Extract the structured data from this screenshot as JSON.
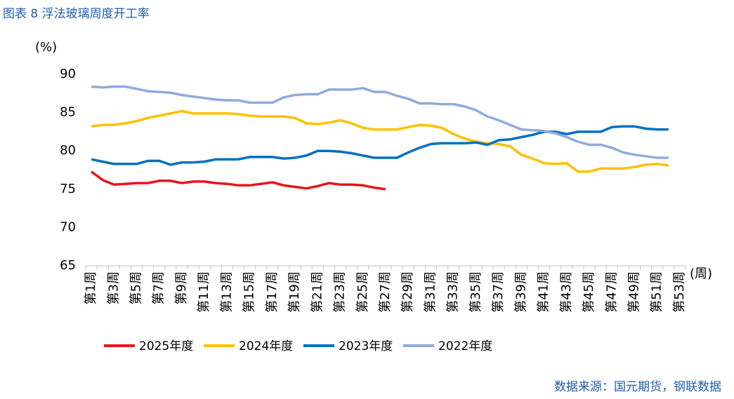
{
  "chart_data": {
    "type": "line",
    "title": "图表 8 浮法玻璃周度开工率",
    "y_label": "(%)",
    "x_label": "(周)",
    "source": "数据来源：国元期货，钢联数据",
    "categories": [
      "第1周",
      null,
      "第3周",
      null,
      "第5周",
      null,
      "第7周",
      null,
      "第9周",
      null,
      "第11周",
      null,
      "第13周",
      null,
      "第15周",
      null,
      "第17周",
      null,
      "第19周",
      null,
      "第21周",
      null,
      "第23周",
      null,
      "第25周",
      null,
      "第27周",
      null,
      "第29周",
      null,
      "第31周",
      null,
      "第33周",
      null,
      "第35周",
      null,
      "第37周",
      null,
      "第39周",
      null,
      "第41周",
      null,
      "第43周",
      null,
      "第45周",
      null,
      "第47周",
      null,
      "第49周",
      null,
      "第51周",
      null,
      "第53周"
    ],
    "series": [
      {
        "name": "2025年度",
        "color": "#e8141b",
        "values": [
          77.3,
          76.2,
          75.6,
          75.7,
          75.8,
          75.8,
          76.1,
          76.1,
          75.8,
          76.0,
          76.0,
          75.8,
          75.7,
          75.5,
          75.5,
          75.7,
          75.9,
          75.5,
          75.3,
          75.1,
          75.4,
          75.8,
          75.6,
          75.6,
          75.5,
          75.2,
          75.0,
          null,
          null,
          null,
          null,
          null,
          null,
          null,
          null,
          null,
          null,
          null,
          null,
          null,
          null,
          null,
          null,
          null,
          null,
          null,
          null,
          null,
          null,
          null,
          null,
          null,
          null
        ]
      },
      {
        "name": "2024年度",
        "color": "#ffc000",
        "values": [
          83.2,
          83.4,
          83.4,
          83.6,
          83.9,
          84.3,
          84.6,
          84.9,
          85.2,
          84.9,
          84.9,
          84.9,
          84.9,
          84.8,
          84.6,
          84.5,
          84.5,
          84.5,
          84.3,
          83.6,
          83.5,
          83.7,
          84.0,
          83.6,
          83.0,
          82.8,
          82.8,
          82.8,
          83.1,
          83.4,
          83.3,
          83.0,
          82.2,
          81.6,
          81.2,
          81.0,
          80.9,
          80.6,
          79.5,
          79.0,
          78.4,
          78.3,
          78.4,
          77.3,
          77.3,
          77.7,
          77.7,
          77.7,
          77.9,
          78.2,
          78.3,
          78.1,
          null
        ]
      },
      {
        "name": "2023年度",
        "color": "#0070c0",
        "values": [
          78.9,
          78.6,
          78.3,
          78.3,
          78.3,
          78.7,
          78.7,
          78.2,
          78.5,
          78.5,
          78.6,
          78.9,
          78.9,
          78.9,
          79.2,
          79.2,
          79.2,
          79.0,
          79.1,
          79.4,
          80.0,
          80.0,
          79.9,
          79.7,
          79.4,
          79.1,
          79.1,
          79.1,
          79.8,
          80.4,
          80.9,
          81.0,
          81.0,
          81.0,
          81.1,
          80.8,
          81.4,
          81.5,
          81.8,
          82.1,
          82.5,
          82.5,
          82.2,
          82.5,
          82.5,
          82.5,
          83.1,
          83.2,
          83.2,
          82.9,
          82.8,
          82.8,
          null
        ]
      },
      {
        "name": "2022年度",
        "color": "#8faadc",
        "values": [
          88.4,
          88.3,
          88.4,
          88.4,
          88.1,
          87.8,
          87.7,
          87.6,
          87.3,
          87.1,
          86.9,
          86.7,
          86.6,
          86.6,
          86.3,
          86.3,
          86.3,
          87.0,
          87.3,
          87.4,
          87.4,
          88.0,
          88.0,
          88.0,
          88.2,
          87.7,
          87.7,
          87.2,
          86.8,
          86.2,
          86.2,
          86.1,
          86.1,
          85.8,
          85.3,
          84.5,
          84.0,
          83.4,
          82.8,
          82.7,
          82.6,
          82.3,
          81.8,
          81.2,
          80.8,
          80.8,
          80.4,
          79.8,
          79.5,
          79.3,
          79.1,
          79.1,
          null
        ]
      }
    ],
    "ylim": [
      65,
      90
    ],
    "yticks": [
      65,
      70,
      75,
      80,
      85,
      90
    ],
    "grid": false,
    "legend": "bottom"
  }
}
